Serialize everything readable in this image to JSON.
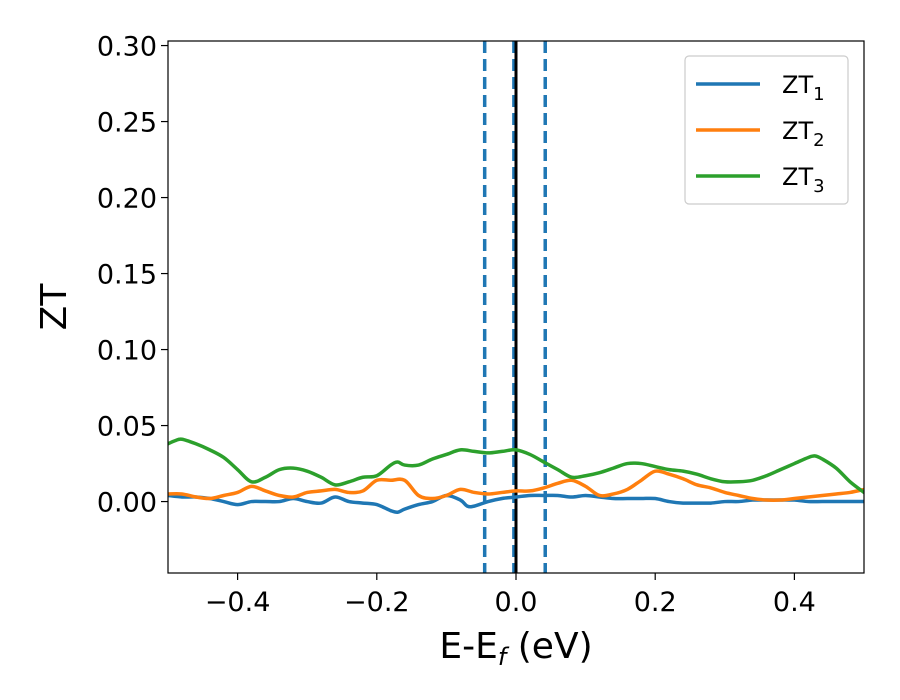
{
  "chart_data": {
    "type": "line",
    "xlabel": {
      "main": "E-E",
      "sub": "f",
      "tail": " (eV)"
    },
    "ylabel": "ZT",
    "xlim": [
      -0.5,
      0.5
    ],
    "ylim": [
      -0.047,
      0.303
    ],
    "x_ticks": [
      -0.4,
      -0.2,
      0.0,
      0.2,
      0.4
    ],
    "x_tick_labels": [
      "−0.4",
      "−0.2",
      "0.0",
      "0.2",
      "0.4"
    ],
    "y_ticks": [
      0.0,
      0.05,
      0.1,
      0.15,
      0.2,
      0.25,
      0.3
    ],
    "y_tick_labels": [
      "0.00",
      "0.05",
      "0.10",
      "0.15",
      "0.20",
      "0.25",
      "0.30"
    ],
    "grid": false,
    "legend_position": "top-right",
    "vertical_lines": [
      {
        "x": -0.045,
        "style": "dashed",
        "color": "#1f77b4"
      },
      {
        "x": -0.003,
        "style": "dashed",
        "color": "#1f77b4"
      },
      {
        "x": 0.042,
        "style": "dashed",
        "color": "#1f77b4"
      },
      {
        "x": 0.0,
        "style": "solid",
        "color": "#000000"
      }
    ],
    "series": [
      {
        "name": {
          "main": "ZT",
          "sub": "1"
        },
        "color": "#1f77b4",
        "x": [
          -0.5,
          -0.48,
          -0.46,
          -0.44,
          -0.42,
          -0.4,
          -0.38,
          -0.36,
          -0.34,
          -0.32,
          -0.3,
          -0.28,
          -0.26,
          -0.24,
          -0.22,
          -0.2,
          -0.18,
          -0.17,
          -0.16,
          -0.14,
          -0.12,
          -0.1,
          -0.08,
          -0.07,
          -0.06,
          -0.04,
          -0.02,
          0.0,
          0.02,
          0.04,
          0.06,
          0.08,
          0.1,
          0.12,
          0.14,
          0.16,
          0.18,
          0.2,
          0.22,
          0.24,
          0.26,
          0.28,
          0.3,
          0.32,
          0.34,
          0.36,
          0.38,
          0.4,
          0.42,
          0.44,
          0.46,
          0.48,
          0.5
        ],
        "y": [
          0.004,
          0.003,
          0.003,
          0.002,
          0.0,
          -0.002,
          0.0,
          0.0,
          0.0,
          0.002,
          0.0,
          -0.001,
          0.003,
          0.0,
          -0.001,
          -0.002,
          -0.006,
          -0.007,
          -0.005,
          -0.002,
          0.0,
          0.004,
          0.001,
          -0.003,
          -0.003,
          0.0,
          0.002,
          0.003,
          0.004,
          0.004,
          0.004,
          0.003,
          0.004,
          0.003,
          0.002,
          0.002,
          0.002,
          0.002,
          0.0,
          -0.001,
          -0.001,
          -0.001,
          0.0,
          0.0,
          0.001,
          0.001,
          0.001,
          0.001,
          0.0,
          0.0,
          0.0,
          0.0,
          0.0
        ]
      },
      {
        "name": {
          "main": "ZT",
          "sub": "2"
        },
        "color": "#ff7f0e",
        "x": [
          -0.5,
          -0.48,
          -0.46,
          -0.44,
          -0.42,
          -0.4,
          -0.38,
          -0.36,
          -0.34,
          -0.32,
          -0.3,
          -0.28,
          -0.26,
          -0.24,
          -0.22,
          -0.2,
          -0.18,
          -0.16,
          -0.14,
          -0.12,
          -0.1,
          -0.08,
          -0.06,
          -0.04,
          -0.02,
          0.0,
          0.02,
          0.04,
          0.06,
          0.08,
          0.1,
          0.12,
          0.14,
          0.16,
          0.18,
          0.2,
          0.22,
          0.24,
          0.26,
          0.28,
          0.3,
          0.32,
          0.34,
          0.36,
          0.38,
          0.4,
          0.42,
          0.44,
          0.46,
          0.48,
          0.5
        ],
        "y": [
          0.005,
          0.005,
          0.003,
          0.002,
          0.004,
          0.006,
          0.01,
          0.007,
          0.004,
          0.003,
          0.006,
          0.007,
          0.008,
          0.006,
          0.007,
          0.014,
          0.014,
          0.014,
          0.004,
          0.002,
          0.004,
          0.008,
          0.006,
          0.005,
          0.006,
          0.007,
          0.007,
          0.009,
          0.012,
          0.014,
          0.01,
          0.004,
          0.005,
          0.008,
          0.014,
          0.02,
          0.018,
          0.015,
          0.011,
          0.009,
          0.006,
          0.004,
          0.002,
          0.001,
          0.001,
          0.002,
          0.003,
          0.004,
          0.005,
          0.006,
          0.008
        ]
      },
      {
        "name": {
          "main": "ZT",
          "sub": "3"
        },
        "color": "#2ca02c",
        "x": [
          -0.5,
          -0.49,
          -0.48,
          -0.46,
          -0.44,
          -0.42,
          -0.4,
          -0.38,
          -0.36,
          -0.34,
          -0.32,
          -0.3,
          -0.28,
          -0.26,
          -0.24,
          -0.22,
          -0.2,
          -0.18,
          -0.17,
          -0.16,
          -0.14,
          -0.12,
          -0.1,
          -0.08,
          -0.06,
          -0.04,
          -0.02,
          0.0,
          0.02,
          0.04,
          0.06,
          0.08,
          0.1,
          0.12,
          0.14,
          0.16,
          0.18,
          0.2,
          0.22,
          0.24,
          0.26,
          0.28,
          0.3,
          0.32,
          0.34,
          0.36,
          0.38,
          0.4,
          0.42,
          0.43,
          0.44,
          0.46,
          0.48,
          0.5
        ],
        "y": [
          0.038,
          0.04,
          0.041,
          0.038,
          0.034,
          0.029,
          0.021,
          0.013,
          0.016,
          0.021,
          0.022,
          0.02,
          0.016,
          0.011,
          0.013,
          0.016,
          0.017,
          0.024,
          0.026,
          0.024,
          0.024,
          0.028,
          0.031,
          0.034,
          0.033,
          0.032,
          0.033,
          0.034,
          0.031,
          0.026,
          0.021,
          0.016,
          0.017,
          0.019,
          0.022,
          0.025,
          0.025,
          0.023,
          0.021,
          0.02,
          0.018,
          0.015,
          0.013,
          0.013,
          0.014,
          0.017,
          0.021,
          0.025,
          0.029,
          0.03,
          0.028,
          0.022,
          0.013,
          0.006
        ]
      }
    ]
  }
}
